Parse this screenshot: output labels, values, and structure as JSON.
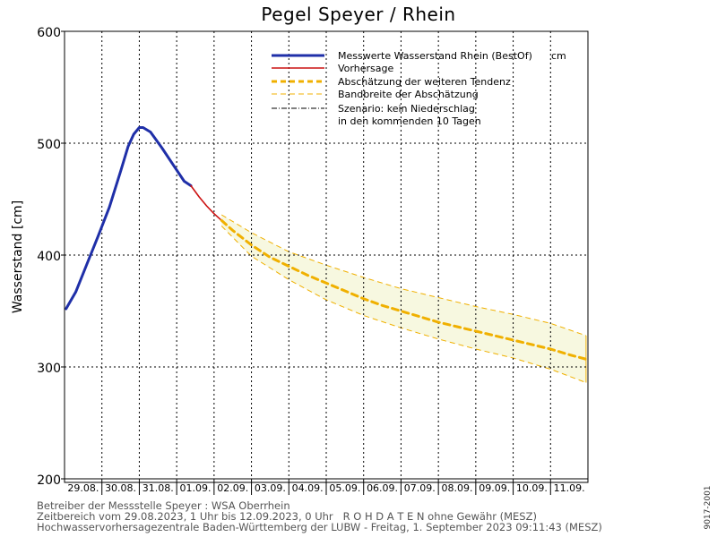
{
  "chart_data": {
    "type": "line",
    "title": "Pegel Speyer / Rhein",
    "ylabel": "Wasserstand [cm]",
    "ylim": [
      200,
      600
    ],
    "yticks": [
      200,
      300,
      400,
      500,
      600
    ],
    "xlim_days": [
      0,
      14
    ],
    "grid": true,
    "x_categories": [
      "29.08.",
      "30.08.",
      "31.08.",
      "01.09.",
      "02.09.",
      "03.09.",
      "04.09.",
      "05.09.",
      "06.09.",
      "07.09.",
      "08.09.",
      "09.09.",
      "10.09.",
      "11.09."
    ],
    "legend": {
      "placement": "top-right",
      "entries": [
        {
          "label": "Messwerte Wasserstand Rhein (BestOf)",
          "unit": "cm",
          "style": "measured"
        },
        {
          "label": "Vorhersage",
          "style": "forecast"
        },
        {
          "label": "Abschätzung der weiteren Tendenz",
          "style": "trend"
        },
        {
          "label": "Bandbreite der Abschätzung",
          "style": "band"
        },
        {
          "label": "Szenario: kein Niederschlag",
          "label2": "in den kommenden 10 Tagen",
          "style": "scenario"
        }
      ]
    },
    "series": [
      {
        "name": "Messwerte Wasserstand Rhein (BestOf)",
        "color": "#1f2fa8",
        "x": [
          0.04,
          0.3,
          0.6,
          0.9,
          1.2,
          1.5,
          1.7,
          1.85,
          2.0,
          2.1,
          2.3,
          2.6,
          2.9,
          3.2,
          3.38
        ],
        "y": [
          352,
          367,
          392,
          417,
          443,
          475,
          497,
          508,
          514,
          514,
          510,
          496,
          481,
          466,
          462
        ]
      },
      {
        "name": "Vorhersage",
        "color": "#cc1111",
        "x": [
          3.38,
          3.6,
          3.8,
          4.0,
          4.2
        ],
        "y": [
          462,
          452,
          444,
          437,
          431
        ]
      },
      {
        "name": "Abschätzung der weiteren Tendenz",
        "color": "#f0b000",
        "x": [
          4.2,
          4.5,
          5.0,
          5.5,
          6.0,
          6.5,
          7.0,
          7.5,
          8.0,
          8.5,
          9.0,
          9.5,
          10.0,
          10.5,
          11.0,
          11.5,
          12.0,
          12.5,
          13.0,
          13.5,
          13.95
        ],
        "y": [
          431,
          422,
          409,
          398,
          390,
          382,
          375,
          368,
          361,
          355,
          350,
          345,
          340,
          336,
          332,
          328,
          324,
          320,
          316,
          311,
          307
        ]
      }
    ],
    "band": {
      "name": "Bandbreite der Abschätzung",
      "color": "#f0b000",
      "fill": "#f7f8e0",
      "x": [
        4.2,
        5.0,
        6.0,
        7.0,
        8.0,
        9.0,
        10.0,
        11.0,
        12.0,
        13.0,
        13.95
      ],
      "upper": [
        436,
        420,
        403,
        391,
        380,
        370,
        362,
        354,
        347,
        339,
        328
      ],
      "lower": [
        426,
        399,
        378,
        360,
        346,
        335,
        325,
        316,
        308,
        298,
        286
      ]
    }
  },
  "footer": {
    "line1": "Betreiber der Messstelle Speyer : WSA Oberrhein",
    "line2": "Zeitbereich vom 29.08.2023, 1 Uhr bis 12.09.2023, 0 Uhr   R O H D A T E N ohne Gewähr (MESZ)",
    "line3": "Hochwasservorhersagezentrale Baden-Württemberg der LUBW - Freitag, 1. September 2023 09:11:43 (MESZ)"
  },
  "code": "9017-2001"
}
